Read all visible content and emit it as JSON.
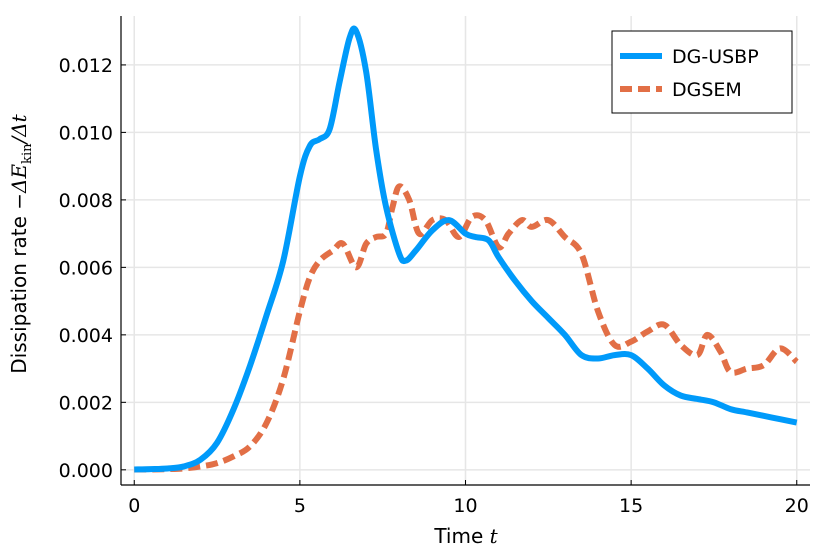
{
  "chart_data": {
    "type": "line",
    "xlabel_text": "Time",
    "xlabel_var": "t",
    "ylabel_text": "Dissipation rate",
    "ylabel_math": "−ΔE",
    "ylabel_sub": "kin",
    "ylabel_tail": "/Δt",
    "xlim": [
      -0.4,
      20.4
    ],
    "ylim": [
      -0.00045,
      0.01345
    ],
    "xticks": [
      0,
      5,
      10,
      15,
      20
    ],
    "xtick_labels": [
      "0",
      "5",
      "10",
      "15",
      "20"
    ],
    "yticks": [
      0,
      0.002,
      0.004,
      0.006,
      0.008,
      0.01,
      0.012
    ],
    "ytick_labels": [
      "0.000",
      "0.002",
      "0.004",
      "0.006",
      "0.008",
      "0.010",
      "0.012"
    ],
    "grid": true,
    "legend_position": "top-right",
    "series": [
      {
        "name": "DG-USBP",
        "color": "#009AFA",
        "style": "solid",
        "x": [
          0,
          0.5,
          1,
          1.5,
          2,
          2.5,
          3,
          3.5,
          4,
          4.5,
          5,
          5.3,
          5.6,
          5.9,
          6.2,
          6.5,
          6.7,
          7.0,
          7.3,
          7.6,
          8.0,
          8.2,
          8.5,
          9.0,
          9.5,
          10.0,
          10.3,
          10.7,
          11.0,
          11.5,
          12.0,
          12.5,
          13.0,
          13.5,
          14.0,
          14.5,
          15.0,
          15.5,
          16.0,
          16.5,
          17.0,
          17.5,
          18.0,
          18.5,
          19.0,
          19.5,
          20.0
        ],
        "y": [
          1e-05,
          2e-05,
          4e-05,
          0.0001,
          0.0003,
          0.0008,
          0.0018,
          0.0031,
          0.0046,
          0.0062,
          0.0087,
          0.0096,
          0.0098,
          0.0101,
          0.0115,
          0.0128,
          0.013,
          0.0118,
          0.0095,
          0.0078,
          0.0064,
          0.0062,
          0.0065,
          0.0071,
          0.0074,
          0.007,
          0.0069,
          0.0068,
          0.0063,
          0.0056,
          0.005,
          0.0045,
          0.004,
          0.0034,
          0.0033,
          0.0034,
          0.0034,
          0.003,
          0.0025,
          0.0022,
          0.0021,
          0.002,
          0.0018,
          0.0017,
          0.0016,
          0.0015,
          0.0014
        ]
      },
      {
        "name": "DGSEM",
        "color": "#E26F46",
        "style": "dashed",
        "x": [
          0,
          0.5,
          1,
          1.5,
          2,
          2.5,
          3,
          3.5,
          4,
          4.5,
          5,
          5.3,
          5.6,
          6.0,
          6.3,
          6.7,
          7.0,
          7.3,
          7.6,
          7.8,
          8.0,
          8.3,
          8.6,
          9.0,
          9.4,
          9.8,
          10.2,
          10.6,
          11.0,
          11.3,
          11.7,
          12.0,
          12.5,
          13.0,
          13.5,
          14.0,
          14.5,
          15.0,
          15.5,
          16.0,
          16.5,
          17.0,
          17.3,
          17.7,
          18.0,
          18.5,
          19.0,
          19.5,
          20.0
        ],
        "y": [
          1e-05,
          1e-05,
          2e-05,
          4e-05,
          0.0001,
          0.0002,
          0.0004,
          0.0007,
          0.0014,
          0.0027,
          0.0047,
          0.0057,
          0.0062,
          0.0065,
          0.0067,
          0.006,
          0.0067,
          0.0069,
          0.007,
          0.0078,
          0.0084,
          0.008,
          0.007,
          0.0074,
          0.0074,
          0.0069,
          0.0075,
          0.0074,
          0.0066,
          0.007,
          0.0074,
          0.0072,
          0.0074,
          0.0069,
          0.0064,
          0.0047,
          0.0037,
          0.0038,
          0.0041,
          0.0043,
          0.0037,
          0.0034,
          0.004,
          0.0035,
          0.0029,
          0.003,
          0.0031,
          0.0036,
          0.0032
        ]
      }
    ]
  }
}
